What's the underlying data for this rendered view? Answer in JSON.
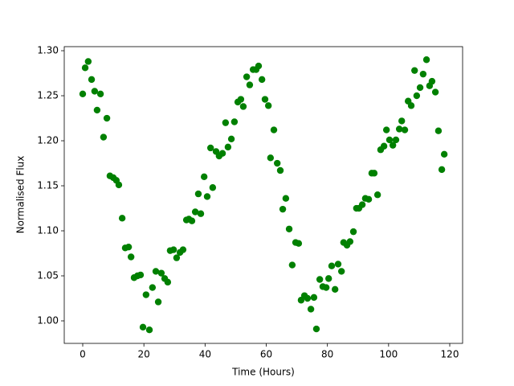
{
  "chart_data": {
    "type": "scatter",
    "xlabel": "Time (Hours)",
    "ylabel": "Normalised Flux",
    "color": "#008000",
    "x": [
      0,
      0.8,
      1.8,
      2.9,
      3.9,
      4.7,
      5.8,
      6.8,
      7.9,
      8.9,
      10.0,
      11.0,
      11.8,
      12.9,
      13.9,
      15.0,
      15.8,
      16.8,
      17.9,
      18.9,
      19.7,
      20.7,
      21.8,
      22.8,
      23.9,
      24.7,
      25.7,
      26.8,
      27.8,
      28.6,
      29.7,
      30.7,
      31.8,
      32.8,
      33.9,
      34.7,
      35.7,
      36.8,
      37.8,
      38.6,
      39.7,
      40.7,
      41.8,
      42.5,
      43.6,
      44.6,
      45.7,
      46.7,
      47.5,
      48.6,
      49.6,
      50.7,
      51.7,
      52.5,
      53.6,
      54.6,
      55.7,
      56.7,
      57.5,
      58.6,
      59.6,
      60.7,
      61.4,
      62.5,
      63.6,
      64.6,
      65.4,
      66.4,
      67.5,
      68.5,
      69.6,
      70.6,
      71.4,
      72.5,
      73.5,
      74.6,
      75.6,
      76.4,
      77.5,
      78.5,
      79.6,
      80.4,
      81.4,
      82.5,
      83.5,
      84.6,
      85.3,
      86.4,
      87.4,
      88.5,
      89.5,
      90.3,
      91.4,
      92.4,
      93.5,
      94.5,
      95.3,
      96.4,
      97.4,
      98.5,
      99.3,
      100.3,
      101.4,
      102.4,
      103.5,
      104.3,
      105.3,
      106.4,
      107.4,
      108.5,
      109.2,
      110.3,
      111.3,
      112.4,
      113.4,
      114.2,
      115.3,
      116.3,
      117.4,
      118.2
    ],
    "values": [
      1.252,
      1.281,
      1.288,
      1.268,
      1.255,
      1.234,
      1.252,
      1.204,
      1.225,
      1.161,
      1.159,
      1.156,
      1.151,
      1.114,
      1.081,
      1.082,
      1.071,
      1.048,
      1.05,
      1.051,
      0.993,
      1.029,
      0.99,
      1.037,
      1.055,
      1.021,
      1.053,
      1.047,
      1.043,
      1.078,
      1.079,
      1.07,
      1.076,
      1.079,
      1.112,
      1.113,
      1.111,
      1.121,
      1.141,
      1.119,
      1.16,
      1.138,
      1.192,
      1.148,
      1.188,
      1.183,
      1.186,
      1.22,
      1.193,
      1.202,
      1.221,
      1.243,
      1.246,
      1.238,
      1.271,
      1.262,
      1.279,
      1.279,
      1.283,
      1.268,
      1.246,
      1.239,
      1.181,
      1.212,
      1.175,
      1.167,
      1.124,
      1.136,
      1.102,
      1.062,
      1.087,
      1.086,
      1.023,
      1.028,
      1.025,
      1.013,
      1.026,
      0.991,
      1.046,
      1.038,
      1.037,
      1.047,
      1.061,
      1.035,
      1.063,
      1.055,
      1.087,
      1.084,
      1.088,
      1.099,
      1.125,
      1.125,
      1.129,
      1.136,
      1.135,
      1.164,
      1.164,
      1.14,
      1.19,
      1.194,
      1.212,
      1.201,
      1.195,
      1.201,
      1.213,
      1.222,
      1.212,
      1.244,
      1.239,
      1.278,
      1.25,
      1.259,
      1.274,
      1.29,
      1.261,
      1.266,
      1.254,
      1.211,
      1.168,
      1.185
    ],
    "xlim": [
      -6.04,
      124.2
    ],
    "ylim": [
      0.975,
      1.3045
    ],
    "xticks": [
      0,
      20,
      40,
      60,
      80,
      100,
      120
    ],
    "yticks": [
      {
        "value": 1.0,
        "label": "1.00"
      },
      {
        "value": 1.05,
        "label": "1.05"
      },
      {
        "value": 1.1,
        "label": "1.10"
      },
      {
        "value": 1.15,
        "label": "1.15"
      },
      {
        "value": 1.2,
        "label": "1.20"
      },
      {
        "value": 1.25,
        "label": "1.25"
      },
      {
        "value": 1.3,
        "label": "1.30"
      }
    ]
  }
}
